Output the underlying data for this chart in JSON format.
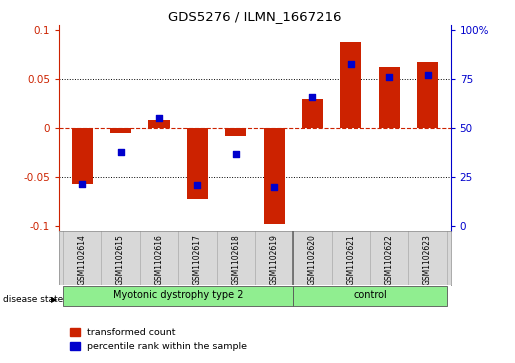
{
  "title": "GDS5276 / ILMN_1667216",
  "categories": [
    "GSM1102614",
    "GSM1102615",
    "GSM1102616",
    "GSM1102617",
    "GSM1102618",
    "GSM1102619",
    "GSM1102620",
    "GSM1102621",
    "GSM1102622",
    "GSM1102623"
  ],
  "red_values": [
    -0.057,
    -0.005,
    0.008,
    -0.073,
    -0.008,
    -0.098,
    0.03,
    0.088,
    0.062,
    0.068
  ],
  "blue_dot_values": [
    -0.057,
    -0.025,
    0.01,
    -0.058,
    -0.027,
    -0.06,
    0.032,
    0.065,
    0.052,
    0.054
  ],
  "red_color": "#cc2200",
  "blue_color": "#0000cc",
  "ylim": [
    -0.105,
    0.105
  ],
  "yticks": [
    -0.1,
    -0.05,
    0.0,
    0.05,
    0.1
  ],
  "ytick_labels_left": [
    "-0.1",
    "-0.05",
    "0",
    "0.05",
    "0.1"
  ],
  "ytick_labels_right": [
    "0",
    "25",
    "50",
    "75",
    "100%"
  ],
  "group1_label": "Myotonic dystrophy type 2",
  "group2_label": "control",
  "disease_state_label": "disease state",
  "legend1": "transformed count",
  "legend2": "percentile rank within the sample",
  "sample_bg_color": "#d8d8d8",
  "group_color": "#90ee90",
  "bar_width": 0.55
}
